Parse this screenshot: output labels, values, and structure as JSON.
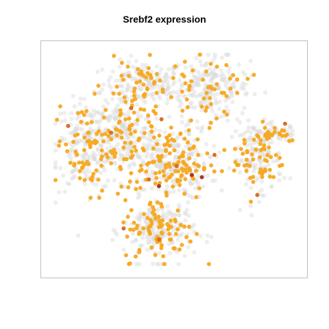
{
  "chart_data": {
    "type": "scatter",
    "title": "Srebf2 expression",
    "xlabel": "",
    "ylabel": "",
    "axes_visible": false,
    "grid": false,
    "legend": "none",
    "colors": {
      "background_cells": "#d9d9d9",
      "low": "#f7a81f",
      "mid": "#d9661c",
      "high": "#a0301e",
      "frame": "#bdbdbd"
    },
    "xlim": [
      0,
      100
    ],
    "ylim": [
      0,
      100
    ],
    "clusters": [
      {
        "name": "top-left",
        "cx": 38,
        "cy": 84,
        "sx": 8,
        "sy": 5,
        "n_bg": 160,
        "n_expr": 45
      },
      {
        "name": "top-right",
        "cx": 64,
        "cy": 82,
        "sx": 8,
        "sy": 7,
        "n_bg": 220,
        "n_expr": 45
      },
      {
        "name": "left",
        "cx": 16,
        "cy": 56,
        "sx": 7,
        "sy": 10,
        "n_bg": 200,
        "n_expr": 70
      },
      {
        "name": "mid-left",
        "cx": 30,
        "cy": 62,
        "sx": 6,
        "sy": 8,
        "n_bg": 150,
        "n_expr": 50
      },
      {
        "name": "center",
        "cx": 48,
        "cy": 48,
        "sx": 8,
        "sy": 8,
        "n_bg": 230,
        "n_expr": 120
      },
      {
        "name": "right",
        "cx": 83,
        "cy": 50,
        "sx": 5,
        "sy": 8,
        "n_bg": 130,
        "n_expr": 55
      },
      {
        "name": "right-top",
        "cx": 90,
        "cy": 62,
        "sx": 5,
        "sy": 2,
        "n_bg": 40,
        "n_expr": 20
      },
      {
        "name": "bottom",
        "cx": 44,
        "cy": 18,
        "sx": 7,
        "sy": 7,
        "n_bg": 200,
        "n_expr": 85
      }
    ],
    "highlighted_points": [
      {
        "x": 44,
        "y": 38,
        "level": "high"
      },
      {
        "x": 61,
        "y": 42,
        "level": "high"
      },
      {
        "x": 57,
        "y": 43,
        "level": "high"
      },
      {
        "x": 51,
        "y": 47,
        "level": "mid"
      },
      {
        "x": 94,
        "y": 66,
        "level": "mid"
      },
      {
        "x": 8,
        "y": 65,
        "level": "mid"
      },
      {
        "x": 25,
        "y": 62,
        "level": "mid"
      },
      {
        "x": 45,
        "y": 68,
        "level": "mid"
      },
      {
        "x": 33,
        "y": 73,
        "level": "mid"
      },
      {
        "x": 44,
        "y": 14,
        "level": "mid"
      },
      {
        "x": 83,
        "y": 34,
        "level": "mid"
      },
      {
        "x": 30,
        "y": 19,
        "level": "mid"
      },
      {
        "x": 40,
        "y": 41,
        "level": "mid"
      },
      {
        "x": 66,
        "y": 52,
        "level": "mid"
      }
    ]
  }
}
